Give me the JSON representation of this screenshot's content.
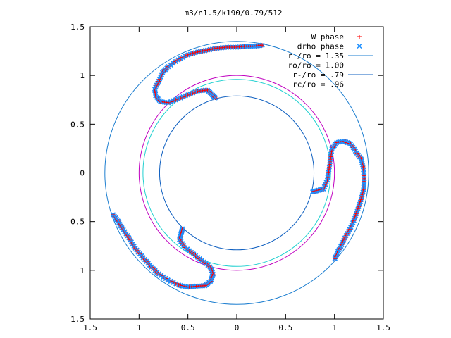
{
  "chart_data": {
    "type": "scatter",
    "title": "m3/n1.5/k190/0.79/512",
    "xlim": [
      -1.5,
      1.5
    ],
    "ylim": [
      -1.5,
      1.5
    ],
    "x_ticks": [
      -1.5,
      -1,
      -0.5,
      0,
      0.5,
      1,
      1.5
    ],
    "y_ticks": [
      -1.5,
      -1,
      -0.5,
      0,
      0.5,
      1,
      1.5
    ],
    "x_tick_labels": [
      "1.5",
      "1",
      "0.5",
      "0",
      "0.5",
      "1",
      "1.5"
    ],
    "y_tick_labels": [
      "1.5",
      "1",
      "0.5",
      "0",
      "0.5",
      "1",
      "1.5"
    ],
    "grid": false,
    "legend_position": "top-right",
    "series": [
      {
        "name": "W phase",
        "kind": "points",
        "marker": "plus",
        "color": "#ff0000"
      },
      {
        "name": "drho phase",
        "kind": "points",
        "marker": "cross",
        "color": "#1e90ff"
      },
      {
        "name": "r+/ro = 1.35",
        "kind": "circle",
        "radius": 1.35,
        "color": "#1e7fd0"
      },
      {
        "name": "ro/ro = 1.00",
        "kind": "circle",
        "radius": 1.0,
        "color": "#c000c0"
      },
      {
        "name": "r-/ro = .79",
        "kind": "circle",
        "radius": 0.79,
        "color": "#1060c0"
      },
      {
        "name": "rc/ro = .96",
        "kind": "circle",
        "radius": 0.96,
        "color": "#20d0d0"
      }
    ],
    "spiral_arms": {
      "count": 3,
      "rotations_deg": [
        0,
        120,
        240
      ],
      "base_path": [
        [
          -0.22,
          0.77
        ],
        [
          -0.25,
          0.8
        ],
        [
          -0.3,
          0.85
        ],
        [
          -0.4,
          0.84
        ],
        [
          -0.5,
          0.8
        ],
        [
          -0.6,
          0.76
        ],
        [
          -0.7,
          0.72
        ],
        [
          -0.78,
          0.73
        ],
        [
          -0.83,
          0.79
        ],
        [
          -0.84,
          0.86
        ],
        [
          -0.8,
          0.94
        ],
        [
          -0.76,
          1.03
        ],
        [
          -0.7,
          1.09
        ],
        [
          -0.6,
          1.16
        ],
        [
          -0.5,
          1.21
        ],
        [
          -0.4,
          1.24
        ],
        [
          -0.3,
          1.26
        ],
        [
          -0.2,
          1.28
        ],
        [
          -0.1,
          1.29
        ],
        [
          0.0,
          1.29
        ],
        [
          0.1,
          1.3
        ],
        [
          0.18,
          1.3
        ],
        [
          0.26,
          1.31
        ]
      ]
    }
  }
}
